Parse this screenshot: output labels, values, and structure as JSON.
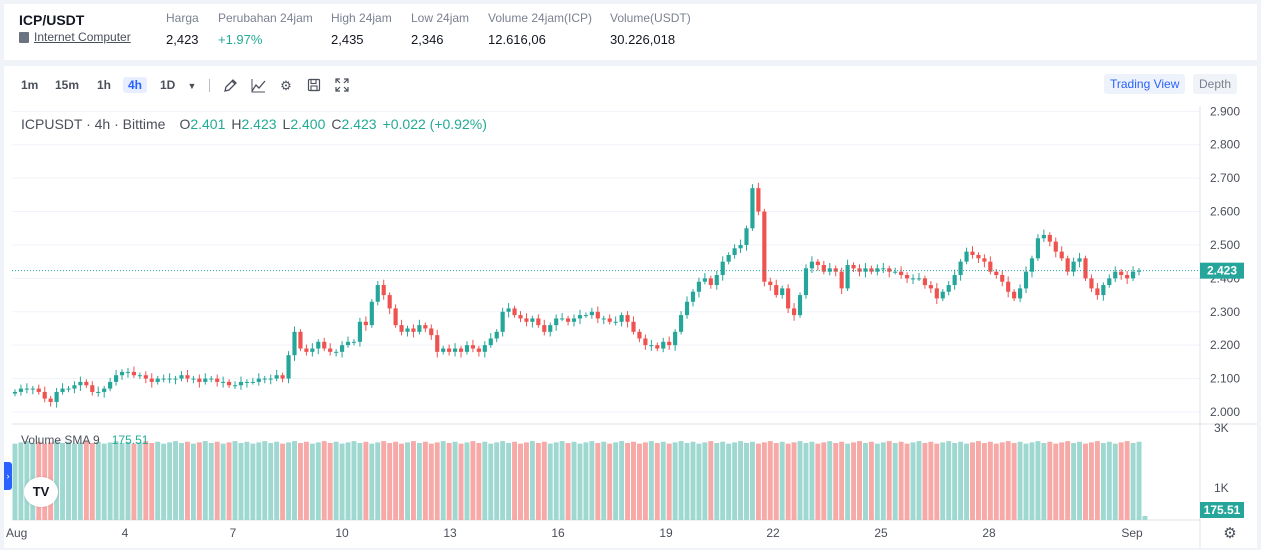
{
  "ticker": {
    "pair": "ICP/USDT",
    "name": "Internet Computer",
    "stats": [
      {
        "label": "Harga",
        "value": "2,423",
        "up": false
      },
      {
        "label": "Perubahan 24jam",
        "value": "+1.97%",
        "up": true
      },
      {
        "label": "High 24jam",
        "value": "2,435",
        "up": false
      },
      {
        "label": "Low 24jam",
        "value": "2,346",
        "up": false
      },
      {
        "label": "Volume 24jam(ICP)",
        "value": "12.616,06",
        "up": false
      },
      {
        "label": "Volume(USDT)",
        "value": "30.226,018",
        "up": false
      }
    ]
  },
  "toolbar": {
    "timeframes": [
      "1m",
      "15m",
      "1h",
      "4h",
      "1D"
    ],
    "active_timeframe": "4h",
    "tools": [
      "chevron-down-icon",
      "draw-icon",
      "indicator-icon",
      "gear-icon",
      "save-icon",
      "fullscreen-icon"
    ],
    "trading_view_label": "Trading View",
    "depth_label": "Depth"
  },
  "legend": {
    "symbol": "ICPUSDT · 4h · Bittime",
    "o_label": "O",
    "o": "2.401",
    "h_label": "H",
    "h": "2.423",
    "l_label": "L",
    "l": "2.400",
    "c_label": "C",
    "c": "2.423",
    "change": "+0.022 (+0.92%)"
  },
  "volume_legend": {
    "label": "Volume SMA 9",
    "value": "175.51"
  },
  "colors": {
    "up": "#26a69a",
    "down": "#ef5350",
    "vol_up": "#9fd8d0",
    "vol_down": "#f7a9a7",
    "accent": "#2962ff"
  },
  "chart_data": {
    "type": "candlestick",
    "symbol": "ICPUSDT",
    "interval": "4h",
    "price_axis_ticks": [
      "2.900",
      "2.800",
      "2.700",
      "2.600",
      "2.500",
      "2.400",
      "2.300",
      "2.200",
      "2.100",
      "2.000"
    ],
    "volume_axis_ticks": [
      "3K",
      "1K"
    ],
    "ylim": [
      1.97,
      2.91
    ],
    "x_ticks": [
      "Aug",
      "4",
      "7",
      "10",
      "13",
      "16",
      "19",
      "22",
      "25",
      "28",
      "Sep"
    ],
    "last_price": "2.423",
    "last_volume": "175.51",
    "closes": [
      2.06,
      2.07,
      2.07,
      2.07,
      2.06,
      2.04,
      2.03,
      2.06,
      2.07,
      2.07,
      2.08,
      2.09,
      2.08,
      2.06,
      2.06,
      2.07,
      2.09,
      2.11,
      2.12,
      2.12,
      2.11,
      2.11,
      2.1,
      2.09,
      2.1,
      2.1,
      2.1,
      2.1,
      2.11,
      2.1,
      2.1,
      2.09,
      2.1,
      2.1,
      2.09,
      2.09,
      2.08,
      2.08,
      2.09,
      2.09,
      2.09,
      2.1,
      2.1,
      2.1,
      2.11,
      2.1,
      2.17,
      2.24,
      2.19,
      2.18,
      2.19,
      2.21,
      2.19,
      2.18,
      2.18,
      2.2,
      2.21,
      2.21,
      2.27,
      2.26,
      2.33,
      2.38,
      2.35,
      2.31,
      2.26,
      2.24,
      2.25,
      2.24,
      2.26,
      2.25,
      2.23,
      2.18,
      2.19,
      2.18,
      2.19,
      2.18,
      2.2,
      2.19,
      2.18,
      2.2,
      2.22,
      2.24,
      2.3,
      2.31,
      2.29,
      2.28,
      2.27,
      2.28,
      2.26,
      2.24,
      2.26,
      2.28,
      2.28,
      2.27,
      2.28,
      2.29,
      2.29,
      2.3,
      2.28,
      2.28,
      2.27,
      2.27,
      2.29,
      2.27,
      2.24,
      2.22,
      2.2,
      2.2,
      2.19,
      2.21,
      2.2,
      2.24,
      2.29,
      2.33,
      2.36,
      2.39,
      2.4,
      2.38,
      2.41,
      2.45,
      2.47,
      2.49,
      2.5,
      2.55,
      2.67,
      2.6,
      2.39,
      2.38,
      2.35,
      2.37,
      2.31,
      2.29,
      2.35,
      2.43,
      2.45,
      2.44,
      2.42,
      2.43,
      2.42,
      2.37,
      2.44,
      2.43,
      2.42,
      2.43,
      2.42,
      2.43,
      2.43,
      2.42,
      2.42,
      2.41,
      2.4,
      2.4,
      2.4,
      2.38,
      2.37,
      2.34,
      2.36,
      2.38,
      2.41,
      2.45,
      2.48,
      2.47,
      2.46,
      2.45,
      2.42,
      2.41,
      2.39,
      2.36,
      2.34,
      2.37,
      2.42,
      2.46,
      2.52,
      2.53,
      2.51,
      2.48,
      2.46,
      2.42,
      2.45,
      2.46,
      2.4,
      2.37,
      2.35,
      2.38,
      2.4,
      2.42,
      2.41,
      2.4,
      2.42,
      2.423
    ],
    "volume_level": 0.96,
    "volume_axis": [
      0,
      3000
    ]
  }
}
